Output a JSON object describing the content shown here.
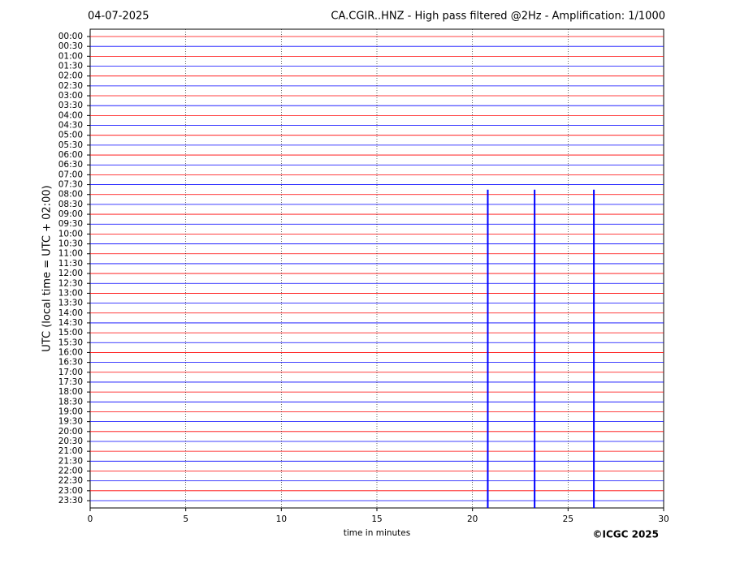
{
  "chart_data": {
    "type": "helicorder",
    "date": "04-07-2025",
    "title": "CA.CGIR..HNZ - High pass filtered @2Hz - Amplification: 1/1000",
    "ylabel": "UTC (local time = UTC + 02:00)",
    "xlabel": "time in minutes",
    "credit": "©ICGC 2025",
    "rows": [
      "00:00",
      "00:30",
      "01:00",
      "01:30",
      "02:00",
      "02:30",
      "03:00",
      "03:30",
      "04:00",
      "04:30",
      "05:00",
      "05:30",
      "06:00",
      "06:30",
      "07:00",
      "07:30",
      "08:00",
      "08:30",
      "09:00",
      "09:30",
      "10:00",
      "10:30",
      "11:00",
      "11:30",
      "12:00",
      "12:30",
      "13:00",
      "13:30",
      "14:00",
      "14:30",
      "15:00",
      "15:30",
      "16:00",
      "16:30",
      "17:00",
      "17:30",
      "18:00",
      "18:30",
      "19:00",
      "19:30",
      "20:00",
      "20:30",
      "21:00",
      "21:30",
      "22:00",
      "22:30",
      "23:00",
      "23:30"
    ],
    "colors": [
      "#ff0000",
      "#0000ff"
    ],
    "xlim": [
      0,
      30
    ],
    "xticks": [
      0,
      5,
      10,
      15,
      20,
      25,
      30
    ],
    "grid": true,
    "events": [
      {
        "x": 20.8,
        "start_row": 16,
        "end_row": 47
      },
      {
        "x": 23.25,
        "start_row": 16,
        "end_row": 47
      },
      {
        "x": 26.35,
        "start_row": 16,
        "end_row": 47
      }
    ]
  }
}
